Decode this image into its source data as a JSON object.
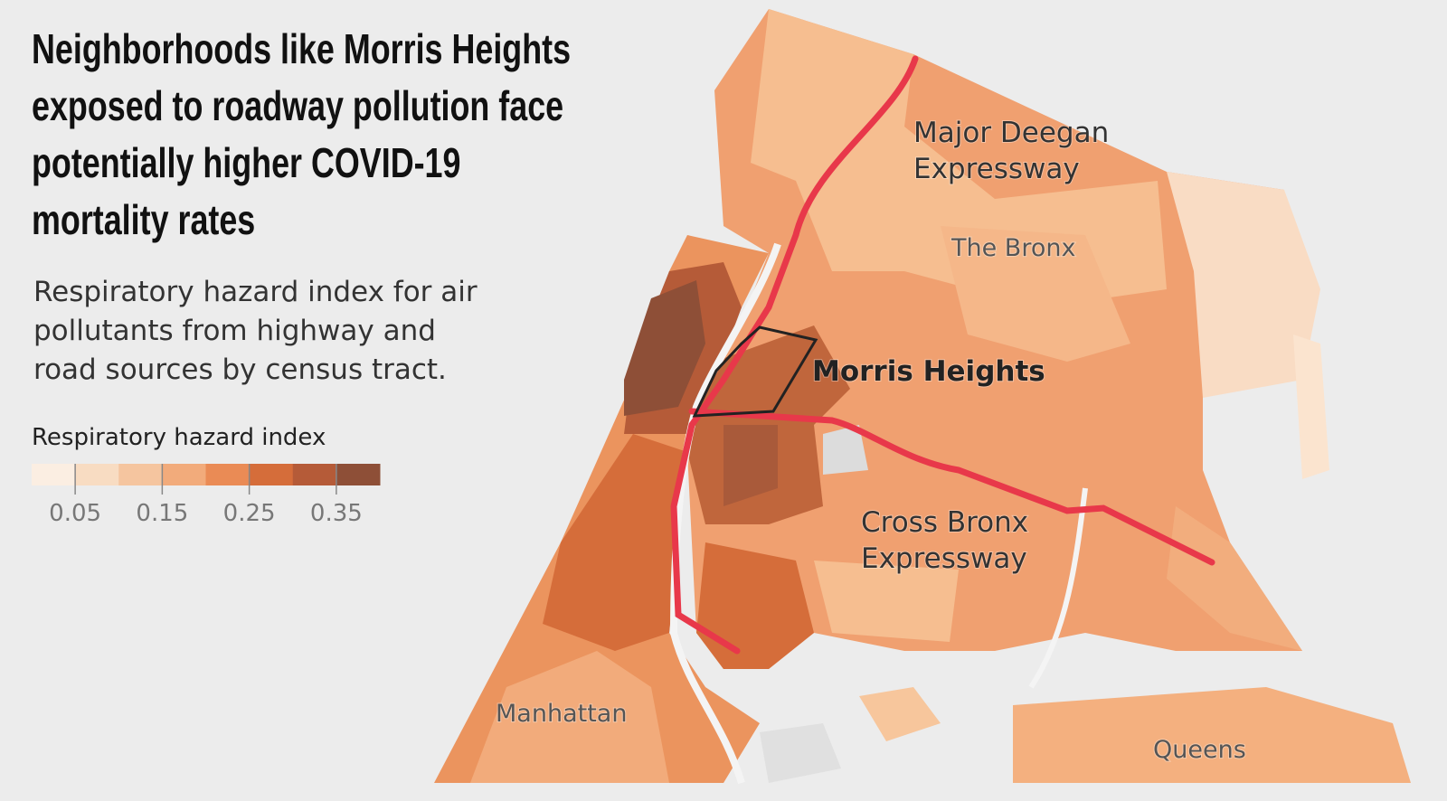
{
  "header": {
    "title_lines": [
      "Neighborhoods like Morris Heights",
      "exposed to roadway pollution face",
      "potentially higher COVID-19",
      "mortality rates"
    ],
    "subtitle_lines": [
      "Respiratory hazard index for air",
      "pollutants from highway and",
      "road sources by census tract."
    ]
  },
  "legend": {
    "title": "Respiratory hazard index",
    "range": [
      0,
      0.4
    ],
    "colors": [
      "#fbeee2",
      "#f8dcc2",
      "#f5c59f",
      "#f2ab7b",
      "#ea8b55",
      "#d56d3a",
      "#b55b38",
      "#8e4f37"
    ],
    "ticks": [
      0.05,
      0.15,
      0.25,
      0.35
    ]
  },
  "map": {
    "labels": {
      "major_deegan": [
        "Major Deegan",
        "Expressway"
      ],
      "bronx": "The Bronx",
      "morris_heights": "Morris Heights",
      "cross_bronx": [
        "Cross Bronx",
        "Expressway"
      ],
      "manhattan": "Manhattan",
      "queens": "Queens"
    }
  }
}
